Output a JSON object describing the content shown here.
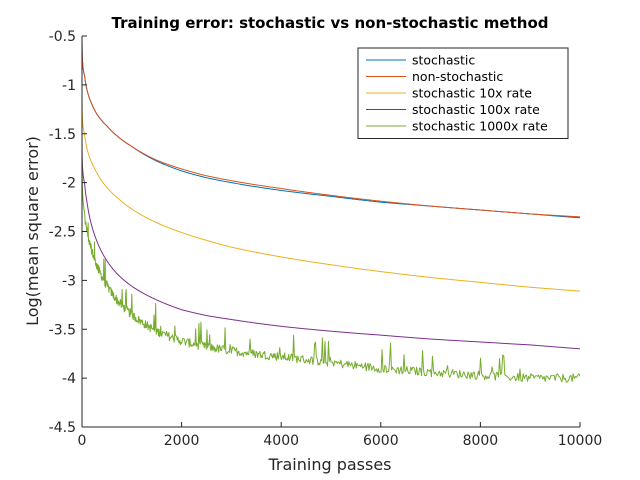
{
  "chart_data": {
    "type": "line",
    "title": "Training error: stochastic vs non-stochastic method",
    "xlabel": "Training passes",
    "ylabel": "Log(mean square error)",
    "xlim": [
      0,
      10000
    ],
    "ylim": [
      -4.5,
      -0.5
    ],
    "xticks": [
      0,
      2000,
      4000,
      6000,
      8000,
      10000
    ],
    "xtick_labels": [
      "0",
      "2000",
      "4000",
      "6000",
      "8000",
      "10000"
    ],
    "yticks": [
      -4.5,
      -4,
      -3.5,
      -3,
      -2.5,
      -2,
      -1.5,
      -1,
      -0.5
    ],
    "ytick_labels": [
      "-4.5",
      "-4",
      "-3.5",
      "-3",
      "-2.5",
      "-2",
      "-1.5",
      "-1",
      "-0.5"
    ],
    "grid": false,
    "legend_position": "top-right",
    "series": [
      {
        "name": "stochastic",
        "color": "#0072bd",
        "noise": 0,
        "x": [
          1,
          50,
          100,
          200,
          300,
          500,
          700,
          1000,
          1500,
          2000,
          2500,
          3000,
          4000,
          5000,
          6000,
          7000,
          8000,
          9000,
          10000
        ],
        "values": [
          -0.55,
          -0.9,
          -1.05,
          -1.2,
          -1.3,
          -1.42,
          -1.52,
          -1.63,
          -1.78,
          -1.88,
          -1.95,
          -2.0,
          -2.08,
          -2.14,
          -2.2,
          -2.24,
          -2.28,
          -2.32,
          -2.36
        ]
      },
      {
        "name": "non-stochastic",
        "color": "#d95319",
        "noise": 0,
        "x": [
          1,
          50,
          100,
          200,
          300,
          500,
          700,
          1000,
          1500,
          2000,
          2500,
          3000,
          4000,
          5000,
          6000,
          7000,
          8000,
          9000,
          10000
        ],
        "values": [
          -0.55,
          -0.9,
          -1.05,
          -1.2,
          -1.3,
          -1.42,
          -1.52,
          -1.63,
          -1.77,
          -1.86,
          -1.93,
          -1.98,
          -2.06,
          -2.13,
          -2.19,
          -2.24,
          -2.28,
          -2.32,
          -2.35
        ]
      },
      {
        "name": "stochastic 10x rate",
        "color": "#edb120",
        "noise": 0,
        "x": [
          1,
          50,
          100,
          200,
          300,
          500,
          700,
          1000,
          1500,
          2000,
          2500,
          3000,
          4000,
          5000,
          6000,
          7000,
          8000,
          9000,
          10000
        ],
        "values": [
          -1.15,
          -1.5,
          -1.65,
          -1.8,
          -1.9,
          -2.05,
          -2.15,
          -2.27,
          -2.41,
          -2.51,
          -2.59,
          -2.66,
          -2.76,
          -2.84,
          -2.91,
          -2.97,
          -3.02,
          -3.07,
          -3.11
        ]
      },
      {
        "name": "stochastic 100x rate",
        "color": "#7e2f8e",
        "noise": 0,
        "x": [
          1,
          50,
          100,
          200,
          300,
          500,
          700,
          1000,
          1500,
          2000,
          2500,
          3000,
          4000,
          5000,
          6000,
          7000,
          8000,
          9000,
          10000
        ],
        "values": [
          -1.6,
          -2.0,
          -2.2,
          -2.45,
          -2.6,
          -2.8,
          -2.93,
          -3.06,
          -3.2,
          -3.3,
          -3.36,
          -3.4,
          -3.47,
          -3.52,
          -3.56,
          -3.6,
          -3.63,
          -3.66,
          -3.7
        ]
      },
      {
        "name": "stochastic 1000x rate",
        "color": "#77ac30",
        "noise": 0.045,
        "x": [
          1,
          50,
          100,
          200,
          300,
          500,
          700,
          1000,
          1500,
          2000,
          2500,
          3000,
          4000,
          5000,
          6000,
          7000,
          8000,
          9000,
          10000
        ],
        "values": [
          -1.75,
          -2.3,
          -2.5,
          -2.7,
          -2.85,
          -3.05,
          -3.2,
          -3.35,
          -3.52,
          -3.62,
          -3.68,
          -3.72,
          -3.78,
          -3.84,
          -3.9,
          -3.94,
          -3.97,
          -4.0,
          -4.0
        ]
      }
    ]
  }
}
